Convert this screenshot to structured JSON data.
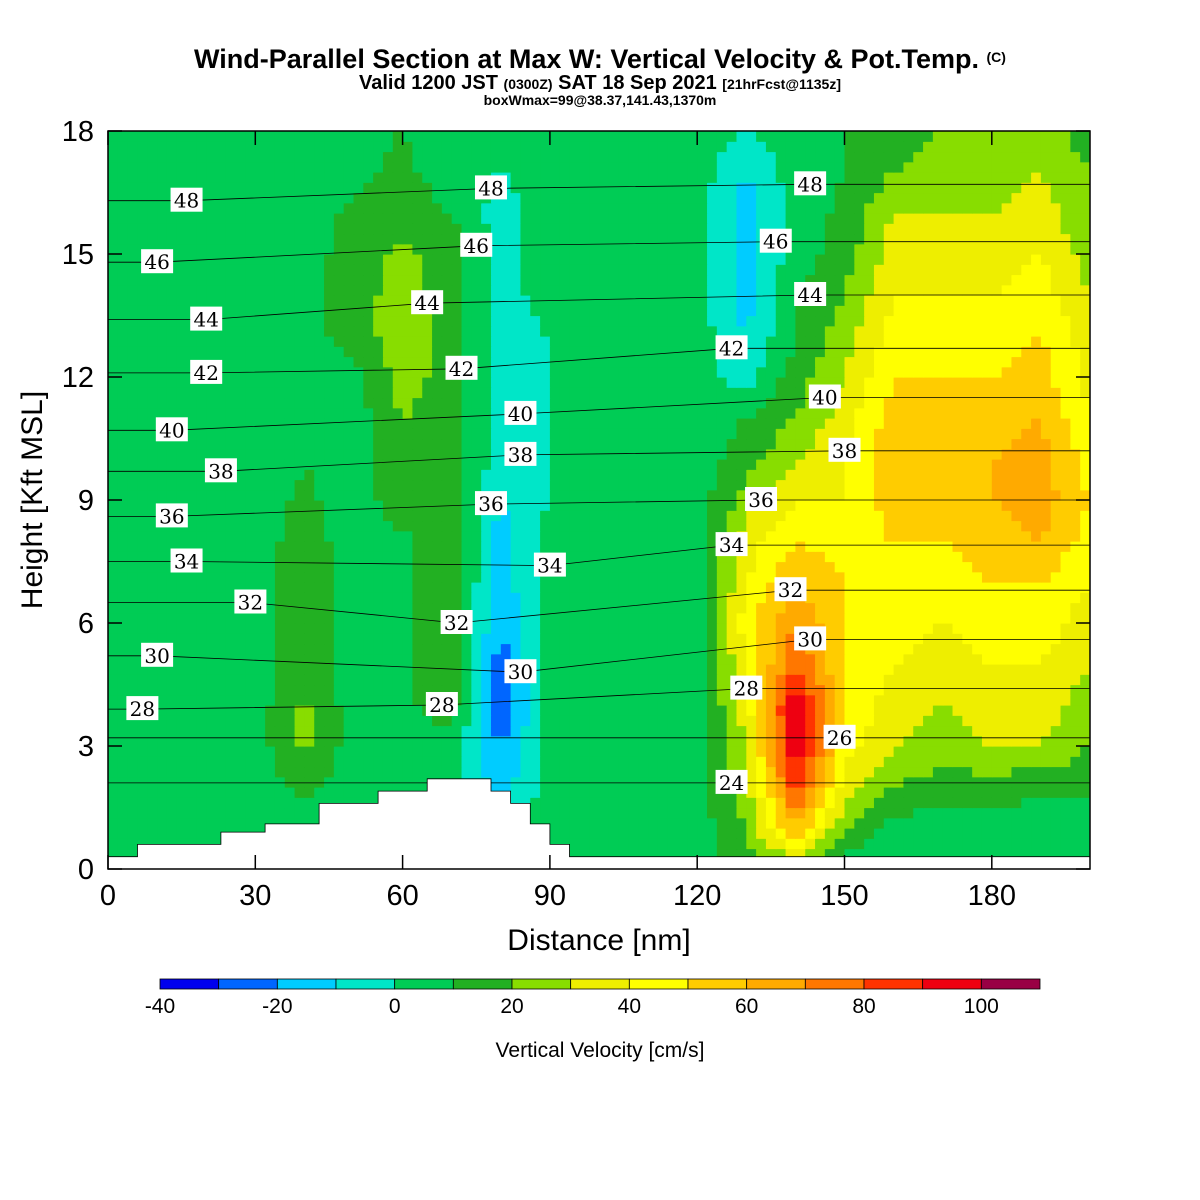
{
  "titles": {
    "main": "Wind-Parallel Section at Max W: Vertical Velocity & Pot.Temp.",
    "copyright": "(C)",
    "valid_a": "Valid 1200 JST",
    "valid_utc": "(0300Z)",
    "valid_b": "SAT 18 Sep 2021",
    "forecast": "[21hrFcst@1135z]",
    "box": "boxWmax=99@38.37,141.43,1370m"
  },
  "chart_data": {
    "type": "heatmap",
    "xlabel": "Distance [nm]",
    "ylabel": "Height [Kft MSL]",
    "xlim": [
      0,
      200
    ],
    "ylim": [
      0,
      18
    ],
    "x_ticks": [
      0,
      30,
      60,
      90,
      120,
      150,
      180
    ],
    "y_ticks": [
      0,
      3,
      6,
      9,
      12,
      15,
      18
    ],
    "colorbar": {
      "title": "Vertical Velocity [cm/s]",
      "tick_labels": [
        "-40",
        "-20",
        "0",
        "20",
        "40",
        "60",
        "80",
        "100"
      ],
      "tick_values": [
        -40,
        -20,
        0,
        20,
        40,
        60,
        80,
        100
      ],
      "bounds": [
        -40,
        -30,
        -20,
        -10,
        0,
        10,
        20,
        30,
        40,
        50,
        60,
        70,
        80,
        90,
        100,
        110
      ],
      "colors": [
        "#0000ee",
        "#0066ff",
        "#00ccff",
        "#00e6c8",
        "#00cc55",
        "#22b022",
        "#88dd00",
        "#eeee00",
        "#ffff00",
        "#ffcc00",
        "#ffaa00",
        "#ff7700",
        "#ff3300",
        "#ee0011",
        "#990044",
        "#660088"
      ]
    },
    "vertical_velocity_field": {
      "x_step_nm": 10,
      "y_step_kft": 1,
      "x": [
        0,
        10,
        20,
        30,
        40,
        50,
        60,
        70,
        80,
        90,
        100,
        110,
        120,
        130,
        140,
        150,
        160,
        170,
        180,
        190,
        200
      ],
      "y": [
        0,
        1,
        2,
        3,
        4,
        5,
        6,
        7,
        8,
        9,
        10,
        11,
        12,
        13,
        14,
        15,
        16,
        17,
        18
      ],
      "values_cm_s": [
        [
          5,
          5,
          5,
          5,
          5,
          5,
          5,
          5,
          5,
          5,
          5,
          5,
          5,
          15,
          20,
          5,
          0,
          0,
          0,
          0,
          5
        ],
        [
          5,
          5,
          5,
          5,
          5,
          5,
          5,
          5,
          5,
          5,
          5,
          5,
          5,
          20,
          60,
          20,
          5,
          5,
          5,
          5,
          5
        ],
        [
          5,
          5,
          5,
          5,
          12,
          5,
          5,
          5,
          -15,
          5,
          5,
          5,
          5,
          25,
          85,
          35,
          20,
          15,
          15,
          12,
          12
        ],
        [
          5,
          5,
          5,
          5,
          22,
          5,
          8,
          5,
          -20,
          5,
          5,
          5,
          5,
          30,
          100,
          45,
          30,
          25,
          30,
          30,
          20
        ],
        [
          5,
          5,
          5,
          5,
          22,
          5,
          8,
          15,
          -30,
          5,
          5,
          5,
          5,
          35,
          100,
          50,
          35,
          30,
          35,
          35,
          25
        ],
        [
          0,
          5,
          5,
          5,
          15,
          5,
          8,
          15,
          -25,
          5,
          5,
          5,
          5,
          40,
          80,
          50,
          40,
          35,
          40,
          40,
          30
        ],
        [
          0,
          5,
          5,
          5,
          15,
          5,
          8,
          15,
          -20,
          5,
          5,
          5,
          5,
          45,
          70,
          50,
          45,
          40,
          45,
          45,
          35
        ],
        [
          0,
          0,
          5,
          5,
          15,
          5,
          8,
          15,
          -15,
          5,
          5,
          5,
          5,
          40,
          60,
          50,
          50,
          45,
          50,
          50,
          40
        ],
        [
          0,
          0,
          0,
          5,
          15,
          5,
          8,
          15,
          -15,
          5,
          5,
          5,
          5,
          35,
          50,
          45,
          50,
          50,
          55,
          60,
          45
        ],
        [
          0,
          0,
          0,
          5,
          12,
          5,
          15,
          15,
          -10,
          0,
          5,
          5,
          5,
          25,
          40,
          40,
          55,
          55,
          60,
          65,
          50
        ],
        [
          0,
          0,
          0,
          0,
          10,
          5,
          15,
          15,
          -5,
          0,
          0,
          5,
          5,
          15,
          30,
          40,
          60,
          60,
          60,
          65,
          45
        ],
        [
          0,
          0,
          0,
          0,
          5,
          5,
          20,
          15,
          -5,
          0,
          0,
          5,
          5,
          10,
          20,
          35,
          55,
          55,
          55,
          60,
          40
        ],
        [
          0,
          0,
          0,
          0,
          5,
          5,
          25,
          15,
          -5,
          0,
          0,
          5,
          5,
          -5,
          15,
          30,
          50,
          50,
          50,
          55,
          35
        ],
        [
          0,
          0,
          0,
          0,
          5,
          15,
          25,
          15,
          -5,
          0,
          0,
          5,
          5,
          -10,
          10,
          25,
          45,
          45,
          45,
          50,
          35
        ],
        [
          0,
          0,
          0,
          0,
          5,
          15,
          25,
          15,
          -5,
          5,
          5,
          5,
          5,
          -15,
          10,
          20,
          40,
          40,
          40,
          45,
          30
        ],
        [
          0,
          0,
          0,
          0,
          5,
          15,
          22,
          15,
          -5,
          5,
          5,
          5,
          5,
          -15,
          5,
          15,
          35,
          35,
          35,
          40,
          25
        ],
        [
          0,
          0,
          0,
          0,
          5,
          12,
          15,
          10,
          -5,
          5,
          5,
          5,
          5,
          -15,
          5,
          12,
          30,
          30,
          30,
          35,
          20
        ],
        [
          0,
          0,
          0,
          0,
          5,
          8,
          12,
          5,
          0,
          5,
          5,
          5,
          5,
          -10,
          5,
          10,
          20,
          25,
          25,
          30,
          20
        ],
        [
          0,
          0,
          0,
          0,
          5,
          8,
          10,
          5,
          0,
          5,
          5,
          5,
          5,
          0,
          5,
          10,
          15,
          20,
          20,
          25,
          15
        ]
      ]
    },
    "terrain_kft": {
      "x": [
        0,
        6,
        6,
        23,
        23,
        32,
        32,
        43,
        43,
        55,
        55,
        65,
        65,
        78,
        78,
        82,
        82,
        86,
        86,
        90,
        90,
        94,
        94,
        200
      ],
      "y": [
        0.3,
        0.3,
        0.6,
        0.6,
        0.9,
        0.9,
        1.1,
        1.1,
        1.6,
        1.6,
        1.9,
        1.9,
        2.2,
        2.2,
        1.9,
        1.9,
        1.6,
        1.6,
        1.1,
        1.1,
        0.6,
        0.6,
        0.3,
        0.3
      ]
    },
    "potential_temperature_isolines": {
      "units": "C",
      "levels": [
        24,
        26,
        28,
        30,
        32,
        34,
        36,
        38,
        40,
        42,
        44,
        46,
        48
      ],
      "labels": [
        {
          "text": "48",
          "x": 16,
          "y": 16.3
        },
        {
          "text": "46",
          "x": 10,
          "y": 14.8
        },
        {
          "text": "44",
          "x": 20,
          "y": 13.4
        },
        {
          "text": "42",
          "x": 20,
          "y": 12.1
        },
        {
          "text": "40",
          "x": 13,
          "y": 10.7
        },
        {
          "text": "38",
          "x": 23,
          "y": 9.7
        },
        {
          "text": "36",
          "x": 13,
          "y": 8.6
        },
        {
          "text": "34",
          "x": 16,
          "y": 7.5
        },
        {
          "text": "32",
          "x": 29,
          "y": 6.5
        },
        {
          "text": "30",
          "x": 10,
          "y": 5.2
        },
        {
          "text": "28",
          "x": 7,
          "y": 3.9
        },
        {
          "text": "48",
          "x": 78,
          "y": 16.6
        },
        {
          "text": "46",
          "x": 75,
          "y": 15.2
        },
        {
          "text": "44",
          "x": 65,
          "y": 13.8
        },
        {
          "text": "42",
          "x": 72,
          "y": 12.2
        },
        {
          "text": "40",
          "x": 84,
          "y": 11.1
        },
        {
          "text": "38",
          "x": 84,
          "y": 10.1
        },
        {
          "text": "36",
          "x": 78,
          "y": 8.9
        },
        {
          "text": "34",
          "x": 90,
          "y": 7.4
        },
        {
          "text": "32",
          "x": 71,
          "y": 6.0
        },
        {
          "text": "30",
          "x": 84,
          "y": 4.8
        },
        {
          "text": "28",
          "x": 68,
          "y": 4.0
        },
        {
          "text": "48",
          "x": 143,
          "y": 16.7
        },
        {
          "text": "46",
          "x": 136,
          "y": 15.3
        },
        {
          "text": "44",
          "x": 143,
          "y": 14.0
        },
        {
          "text": "42",
          "x": 127,
          "y": 12.7
        },
        {
          "text": "40",
          "x": 146,
          "y": 11.5
        },
        {
          "text": "38",
          "x": 150,
          "y": 10.2
        },
        {
          "text": "36",
          "x": 133,
          "y": 9.0
        },
        {
          "text": "34",
          "x": 127,
          "y": 7.9
        },
        {
          "text": "32",
          "x": 139,
          "y": 6.8
        },
        {
          "text": "30",
          "x": 143,
          "y": 5.6
        },
        {
          "text": "28",
          "x": 130,
          "y": 4.4
        },
        {
          "text": "26",
          "x": 149,
          "y": 3.2
        },
        {
          "text": "24",
          "x": 127,
          "y": 2.1
        }
      ]
    },
    "grid": false
  }
}
